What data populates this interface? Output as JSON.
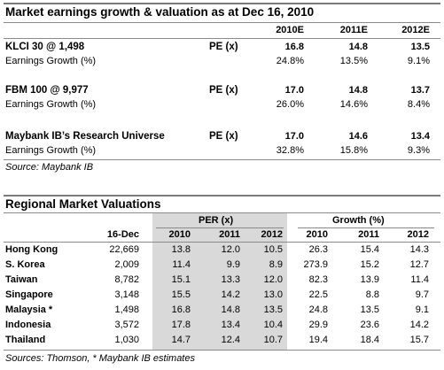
{
  "top": {
    "title": "Market earnings growth & valuation as at Dec 16, 2010",
    "headers": [
      "2010E",
      "2011E",
      "2012E"
    ],
    "groups": [
      {
        "name": "KLCI 30 @ 1,498",
        "metric": "PE (x)",
        "pe": [
          "16.8",
          "14.8",
          "13.5"
        ],
        "growth_label": "Earnings Growth (%)",
        "growth": [
          "24.8%",
          "13.5%",
          "9.1%"
        ]
      },
      {
        "name": "FBM 100 @ 9,977",
        "metric": "PE (x)",
        "pe": [
          "17.0",
          "14.8",
          "13.7"
        ],
        "growth_label": "Earnings Growth (%)",
        "growth": [
          "26.0%",
          "14.6%",
          "8.4%"
        ]
      },
      {
        "name": "Maybank IB’s Research Universe",
        "metric": "PE (x)",
        "pe": [
          "17.0",
          "14.6",
          "13.4"
        ],
        "growth_label": "Earnings Growth (%)",
        "growth": [
          "32.8%",
          "15.8%",
          "9.3%"
        ]
      }
    ],
    "source": "Source: Maybank IB"
  },
  "bottom": {
    "title": "Regional Market Valuations",
    "per_group": "PER (x)",
    "growth_group": "Growth (%)",
    "date_header": "16-Dec",
    "per_years": [
      "2010",
      "2011",
      "2012"
    ],
    "growth_years": [
      "2010",
      "2011",
      "2012"
    ],
    "rows": [
      {
        "market": "Hong Kong",
        "index": "22,669",
        "per": [
          "13.8",
          "12.0",
          "10.5"
        ],
        "growth": [
          "26.3",
          "15.4",
          "14.3"
        ]
      },
      {
        "market": "S. Korea",
        "index": "2,009",
        "per": [
          "11.4",
          "9.9",
          "8.9"
        ],
        "growth": [
          "273.9",
          "15.2",
          "12.7"
        ]
      },
      {
        "market": "Taiwan",
        "index": "8,782",
        "per": [
          "15.1",
          "13.3",
          "12.0"
        ],
        "growth": [
          "82.3",
          "13.9",
          "11.4"
        ]
      },
      {
        "market": "Singapore",
        "index": "3,148",
        "per": [
          "15.5",
          "14.2",
          "13.0"
        ],
        "growth": [
          "22.5",
          "8.8",
          "9.7"
        ]
      },
      {
        "market": "Malaysia *",
        "index": "1,498",
        "per": [
          "16.8",
          "14.8",
          "13.5"
        ],
        "growth": [
          "24.8",
          "13.5",
          "9.1"
        ]
      },
      {
        "market": "Indonesia",
        "index": "3,572",
        "per": [
          "17.8",
          "13.4",
          "10.4"
        ],
        "growth": [
          "29.9",
          "23.6",
          "14.2"
        ]
      },
      {
        "market": "Thailand",
        "index": "1,030",
        "per": [
          "14.7",
          "12.4",
          "10.7"
        ],
        "growth": [
          "19.4",
          "18.4",
          "15.7"
        ]
      }
    ],
    "source": "Sources: Thomson, * Maybank IB estimates"
  }
}
